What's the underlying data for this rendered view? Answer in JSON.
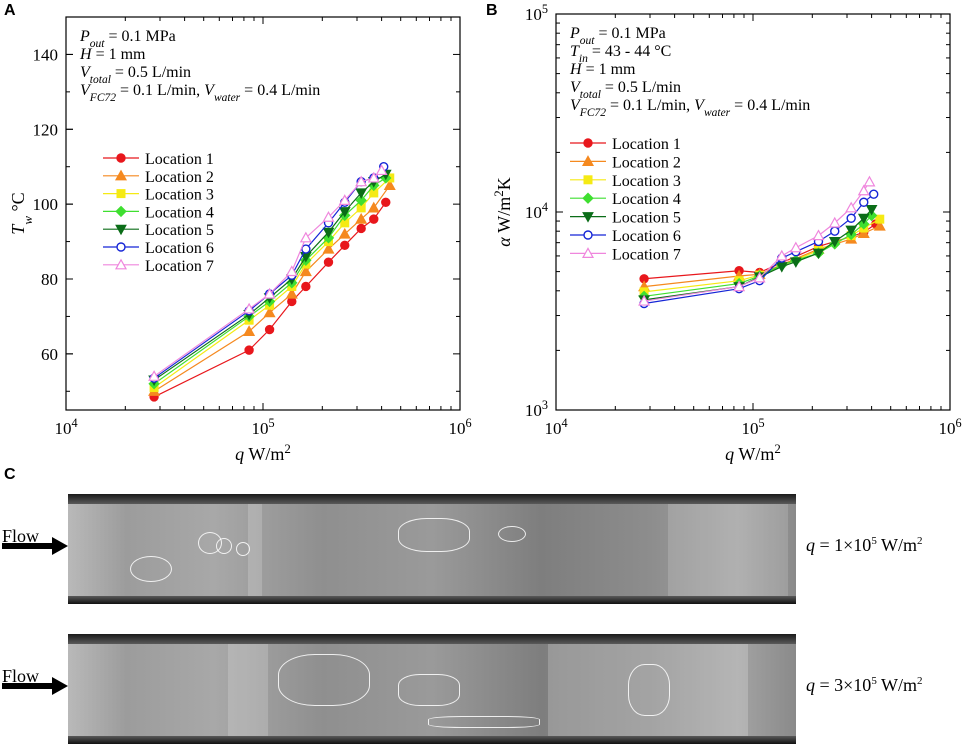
{
  "panels": {
    "a_letter": "A",
    "b_letter": "B",
    "c_letter": "C"
  },
  "chart_data": [
    {
      "type": "line",
      "id": "A",
      "xlabel": "q W/m2",
      "ylabel": "Tw °C",
      "xscale": "log",
      "xlim": [
        10000,
        1000000
      ],
      "ylim": [
        45,
        150
      ],
      "x_ticks": [
        "10^4",
        "10^5",
        "10^6"
      ],
      "y_ticks": [
        60,
        80,
        100,
        120,
        140
      ],
      "annotations": [
        "Pout = 0.1 MPa",
        "H = 1 mm",
        "Vtotal = 0.5 L/min",
        "VFC72 = 0.1 L/min,  Vwater = 0.4 L/min"
      ],
      "legend_position": "middle-left",
      "series": [
        {
          "name": "Location 1",
          "color": "#e8171c",
          "marker": "circle-filled",
          "x": [
            28000,
            85000,
            108000,
            140000,
            165000,
            215000,
            260000,
            315000,
            365000,
            420000
          ],
          "y": [
            48.5,
            61,
            66.5,
            74,
            78,
            84.5,
            89,
            93.5,
            96,
            100.5
          ]
        },
        {
          "name": "Location 2",
          "color": "#f5891f",
          "marker": "triangle-up-filled",
          "x": [
            28000,
            85000,
            108000,
            140000,
            165000,
            215000,
            260000,
            315000,
            365000,
            440000
          ],
          "y": [
            50,
            66,
            71,
            76,
            82,
            88,
            92,
            96,
            99,
            105
          ]
        },
        {
          "name": "Location 3",
          "color": "#f5ea14",
          "marker": "square-filled",
          "x": [
            28000,
            85000,
            108000,
            140000,
            165000,
            215000,
            260000,
            315000,
            365000,
            440000
          ],
          "y": [
            51,
            69,
            73,
            78,
            84,
            90,
            95,
            99,
            103,
            107
          ]
        },
        {
          "name": "Location 4",
          "color": "#3fdf30",
          "marker": "diamond-filled",
          "x": [
            28000,
            85000,
            108000,
            140000,
            165000,
            215000,
            260000,
            315000,
            365000,
            420000
          ],
          "y": [
            52,
            70,
            74,
            79,
            85,
            91,
            97,
            101,
            105,
            107
          ]
        },
        {
          "name": "Location 5",
          "color": "#0b6d18",
          "marker": "triangle-down-filled",
          "x": [
            28000,
            85000,
            108000,
            140000,
            165000,
            215000,
            260000,
            315000,
            365000,
            420000
          ],
          "y": [
            53,
            70.5,
            75,
            80,
            86,
            92.5,
            98,
            103,
            106,
            108
          ]
        },
        {
          "name": "Location 6",
          "color": "#1525d6",
          "marker": "circle-open",
          "x": [
            28000,
            85000,
            108000,
            140000,
            165000,
            215000,
            260000,
            315000,
            365000,
            410000
          ],
          "y": [
            53.5,
            71.5,
            76,
            81,
            88,
            95,
            100.5,
            106,
            107,
            110
          ]
        },
        {
          "name": "Location 7",
          "color": "#ef86dd",
          "marker": "triangle-up-open",
          "x": [
            28000,
            85000,
            108000,
            140000,
            165000,
            215000,
            260000,
            315000,
            365000,
            400000
          ],
          "y": [
            54,
            72,
            76,
            82,
            91,
            96.5,
            101,
            106,
            107,
            109
          ]
        }
      ]
    },
    {
      "type": "line",
      "id": "B",
      "xlabel": "q W/m2",
      "ylabel": "α W/m2K",
      "xscale": "log",
      "yscale": "log",
      "xlim": [
        10000,
        1000000
      ],
      "ylim": [
        1000,
        100000
      ],
      "x_ticks": [
        "10^4",
        "10^5",
        "10^6"
      ],
      "y_ticks": [
        "10^3",
        "10^4",
        "10^5"
      ],
      "annotations": [
        "Pout = 0.1 MPa",
        "Tin = 43 - 44 °C",
        "H = 1 mm",
        "Vtotal = 0.5 L/min",
        "VFC72 = 0.1 L/min,  Vwater = 0.4 L/min"
      ],
      "legend_position": "upper-left",
      "series": [
        {
          "name": "Location 1",
          "color": "#e8171c",
          "marker": "circle-filled",
          "x": [
            28000,
            85000,
            108000,
            215000,
            315000,
            365000,
            420000
          ],
          "y": [
            4600,
            5050,
            4950,
            6700,
            7500,
            7900,
            8700
          ]
        },
        {
          "name": "Location 2",
          "color": "#f5891f",
          "marker": "triangle-up-filled",
          "x": [
            28000,
            85000,
            108000,
            215000,
            315000,
            365000,
            440000
          ],
          "y": [
            4200,
            4750,
            4850,
            6500,
            7300,
            7800,
            8500
          ]
        },
        {
          "name": "Location 3",
          "color": "#f5ea14",
          "marker": "square-filled",
          "x": [
            28000,
            85000,
            108000,
            215000,
            315000,
            365000,
            440000
          ],
          "y": [
            3950,
            4500,
            4800,
            6400,
            7600,
            8300,
            9200
          ]
        },
        {
          "name": "Location 4",
          "color": "#3fdf30",
          "marker": "diamond-filled",
          "x": [
            28000,
            85000,
            108000,
            140000,
            165000,
            215000,
            260000,
            315000,
            365000,
            400000
          ],
          "y": [
            3750,
            4350,
            4750,
            5400,
            5700,
            6200,
            6900,
            7700,
            8700,
            9600
          ]
        },
        {
          "name": "Location 5",
          "color": "#0b6d18",
          "marker": "triangle-down-filled",
          "x": [
            28000,
            85000,
            108000,
            140000,
            165000,
            215000,
            260000,
            315000,
            365000,
            400000
          ],
          "y": [
            3600,
            4200,
            4700,
            5300,
            5600,
            6200,
            7100,
            8100,
            9300,
            10300
          ]
        },
        {
          "name": "Location 6",
          "color": "#1525d6",
          "marker": "circle-open",
          "x": [
            28000,
            85000,
            108000,
            140000,
            165000,
            215000,
            260000,
            315000,
            365000,
            410000
          ],
          "y": [
            3450,
            4100,
            4500,
            5850,
            6300,
            7100,
            8000,
            9300,
            11200,
            12300
          ]
        },
        {
          "name": "Location 7",
          "color": "#ef86dd",
          "marker": "triangle-up-open",
          "x": [
            28000,
            85000,
            108000,
            140000,
            165000,
            215000,
            260000,
            315000,
            365000,
            390000
          ],
          "y": [
            3550,
            4200,
            4650,
            6000,
            6600,
            7600,
            8800,
            10500,
            12800,
            14200
          ]
        }
      ]
    }
  ],
  "photos": {
    "flow_label": "Flow",
    "top_q_label": "q = 1×10^5 W/m^2",
    "bottom_q_label": "q = 3×10^5 W/m^2"
  }
}
